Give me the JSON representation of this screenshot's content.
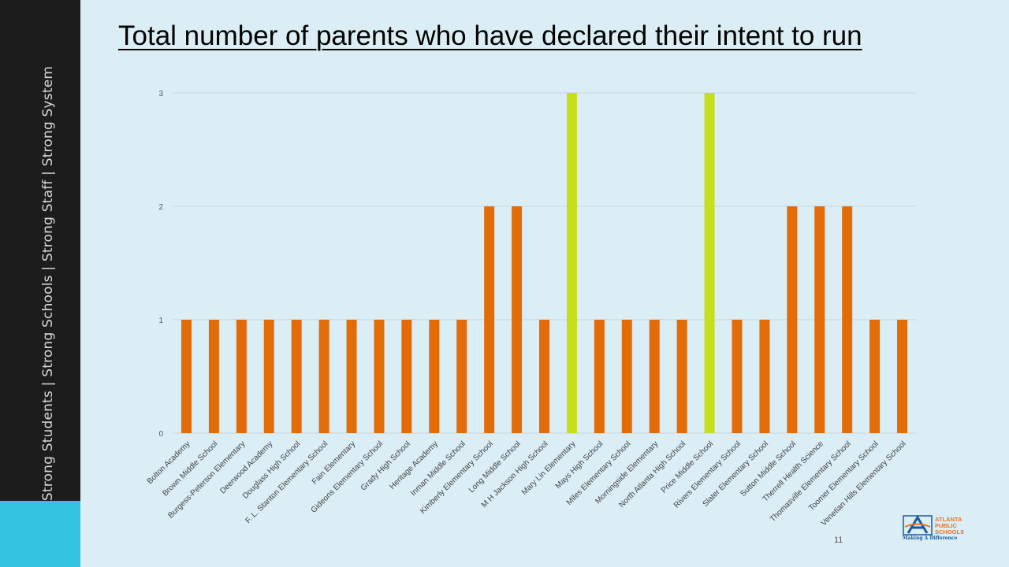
{
  "sidebar": {
    "tagline": "Strong Students  |  Strong Schools  |  Strong Staff  |  Strong System"
  },
  "slide": {
    "title": "Total number of parents who have declared their intent to run",
    "page_number": "11"
  },
  "logo": {
    "line1": "ATLANTA",
    "line2": "PUBLIC",
    "line3": "SCHOOLS",
    "tagline": "Making A Difference",
    "colors": {
      "orange": "#e8732a",
      "blue": "#1a5a96"
    }
  },
  "colors": {
    "default_bar": "#e36c09",
    "highlight_bar": "#c6df1c",
    "gridline": "#c8d4da"
  },
  "chart_data": {
    "type": "bar",
    "title": "",
    "xlabel": "",
    "ylabel": "",
    "ylim": [
      0,
      3
    ],
    "yticks": [
      0,
      1,
      2,
      3
    ],
    "grid": true,
    "categories": [
      "Bolton Academy",
      "Brown Middle School",
      "Burgess-Peterson Elementary",
      "Deerwood Academy",
      "Douglass High School",
      "F. L. Stanton Elementary School",
      "Fain Elementary",
      "Gideons Elementary School",
      "Grady High School",
      "Heritage Academy",
      "Inman Middle School",
      "Kimberly Elementary School",
      "Long Middle School",
      "M H Jackson High School",
      "Mary Lin Elementary",
      "Mays High School",
      "Miles Elementary School",
      "Morningside Elementary",
      "North Atlanta High School",
      "Price Middle School",
      "Rivers Elementary School",
      "Slater Elementary School",
      "Sutton Middle School",
      "Therrell Health Science",
      "Thomasville Elementary School",
      "Toomer Elementary School",
      "Venetian Hills Elementary School"
    ],
    "values": [
      1,
      1,
      1,
      1,
      1,
      1,
      1,
      1,
      1,
      1,
      1,
      2,
      2,
      1,
      3,
      1,
      1,
      1,
      1,
      3,
      1,
      1,
      2,
      2,
      2,
      1,
      1
    ],
    "highlighted": [
      "Mary Lin Elementary",
      "Price Middle School"
    ]
  }
}
